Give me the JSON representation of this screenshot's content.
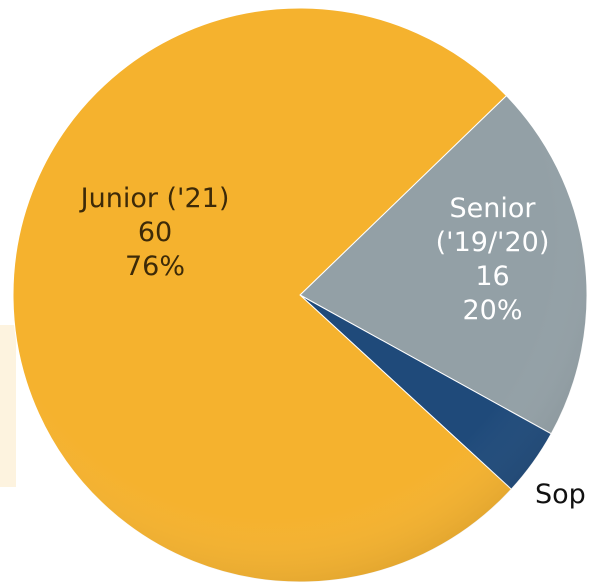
{
  "chart_data": {
    "type": "pie",
    "categories": [
      "Junior ('21)",
      "Senior ('19/'20)",
      "Sop"
    ],
    "values": [
      60,
      16,
      3
    ],
    "percent_labels": [
      "76%",
      "20%",
      null
    ],
    "colors": [
      "#f5b22e",
      "#93a0a6",
      "#1f4a7a"
    ],
    "label_colors": [
      "#3d2a08",
      "#ffffff",
      "#111111"
    ]
  }
}
